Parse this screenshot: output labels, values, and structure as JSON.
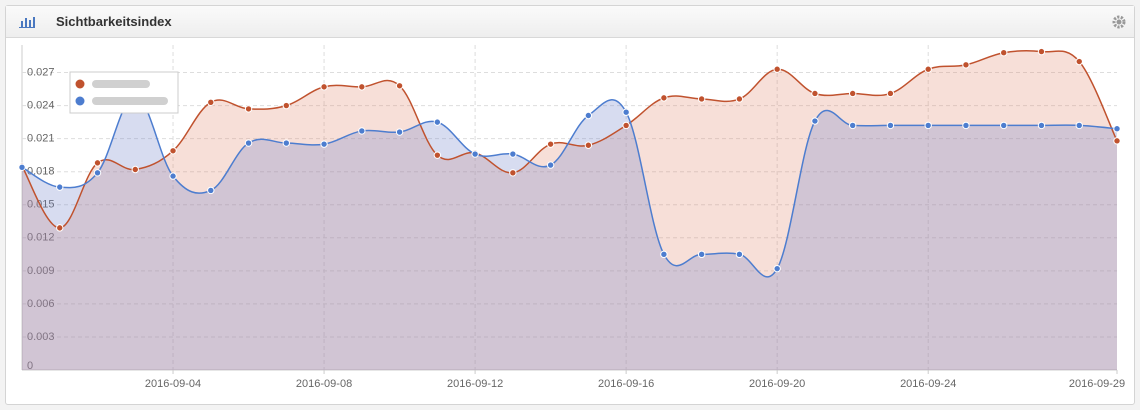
{
  "header": {
    "title": "Sichtbarkeitsindex"
  },
  "chart_data": {
    "type": "area",
    "categories": [
      null,
      null,
      null,
      null,
      "2016-09-04",
      null,
      null,
      null,
      "2016-09-08",
      null,
      null,
      null,
      "2016-09-12",
      null,
      null,
      null,
      "2016-09-16",
      null,
      null,
      null,
      "2016-09-20",
      null,
      null,
      null,
      "2016-09-24",
      null,
      null,
      null,
      null,
      "2016-09-29"
    ],
    "series": [
      {
        "color": "#c0522e",
        "values": [
          0.0185,
          0.0129,
          0.0188,
          0.0182,
          0.0199,
          0.0243,
          0.0237,
          0.024,
          0.0257,
          0.0257,
          0.0258,
          0.0195,
          0.0197,
          0.0179,
          0.0205,
          0.0204,
          0.0222,
          0.0247,
          0.0246,
          0.0246,
          0.0273,
          0.0251,
          0.0251,
          0.0251,
          0.0273,
          0.0277,
          0.0288,
          0.0289,
          0.028,
          0.0208
        ]
      },
      {
        "color": "#4d7dcf",
        "values": [
          0.0184,
          0.0166,
          0.0179,
          0.0249,
          0.0176,
          0.0163,
          0.0206,
          0.0206,
          0.0205,
          0.0217,
          0.0216,
          0.0225,
          0.0196,
          0.0196,
          0.0186,
          0.0231,
          0.0234,
          0.0105,
          0.0105,
          0.0105,
          0.0092,
          0.0226,
          0.0222,
          0.0222,
          0.0222,
          0.0222,
          0.0222,
          0.0222,
          0.0222,
          0.0219
        ]
      }
    ],
    "ylim": [
      0,
      0.0295
    ],
    "yticks": [
      0,
      0.003,
      0.006,
      0.009,
      0.012,
      0.015,
      0.018,
      0.021,
      0.024,
      0.027
    ],
    "grid": true
  }
}
